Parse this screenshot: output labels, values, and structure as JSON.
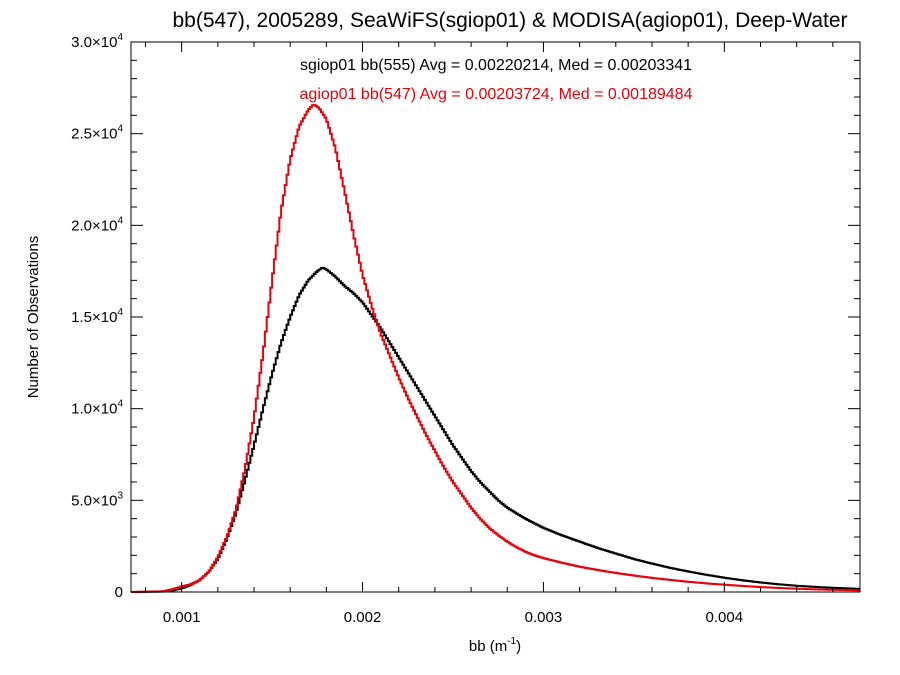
{
  "chart_data": {
    "type": "line",
    "title": "bb(547), 2005289, SeaWiFS(sgiop01) & MODISA(agiop01), Deep-Water",
    "xlabel": {
      "base": "bb (m",
      "sup": "-1",
      "close": ")"
    },
    "ylabel": "Number of Observations",
    "xlim": [
      0.00072,
      0.00475
    ],
    "ylim": [
      0,
      30000
    ],
    "x_ticks": [
      {
        "value": 0.001,
        "label": "0.001"
      },
      {
        "value": 0.002,
        "label": "0.002"
      },
      {
        "value": 0.003,
        "label": "0.003"
      },
      {
        "value": 0.004,
        "label": "0.004"
      }
    ],
    "y_ticks": [
      {
        "value": 0,
        "mant": "0",
        "exp": ""
      },
      {
        "value": 5000,
        "mant": "5.0×10",
        "exp": "3"
      },
      {
        "value": 10000,
        "mant": "1.0×10",
        "exp": "4"
      },
      {
        "value": 15000,
        "mant": "1.5×10",
        "exp": "4"
      },
      {
        "value": 20000,
        "mant": "2.0×10",
        "exp": "4"
      },
      {
        "value": 25000,
        "mant": "2.5×10",
        "exp": "4"
      },
      {
        "value": 30000,
        "mant": "3.0×10",
        "exp": "4"
      }
    ],
    "annotations": [
      {
        "text": "sgiop01 bb(555) Avg = 0.00220214, Med = 0.00203341",
        "color": "#000000"
      },
      {
        "text": "agiop01 bb(547) Avg = 0.00203724, Med = 0.00189484",
        "color": "#e8000b"
      }
    ],
    "grid": false,
    "step": true,
    "series": [
      {
        "color": "#000000",
        "points": [
          [
            0.00072,
            0
          ],
          [
            0.0009,
            20
          ],
          [
            0.00095,
            80
          ],
          [
            0.001,
            200
          ],
          [
            0.00105,
            380
          ],
          [
            0.0011,
            650
          ],
          [
            0.00115,
            1100
          ],
          [
            0.0012,
            1800
          ],
          [
            0.00125,
            2900
          ],
          [
            0.0013,
            4300
          ],
          [
            0.00135,
            6100
          ],
          [
            0.0014,
            8000
          ],
          [
            0.00145,
            10000
          ],
          [
            0.0015,
            11900
          ],
          [
            0.00155,
            13600
          ],
          [
            0.0016,
            15000
          ],
          [
            0.00165,
            16200
          ],
          [
            0.0017,
            17000
          ],
          [
            0.00175,
            17500
          ],
          [
            0.00178,
            17700
          ],
          [
            0.0018,
            17600
          ],
          [
            0.00185,
            17200
          ],
          [
            0.0019,
            16700
          ],
          [
            0.00195,
            16300
          ],
          [
            0.002,
            15800
          ],
          [
            0.00205,
            15100
          ],
          [
            0.0021,
            14400
          ],
          [
            0.00215,
            13600
          ],
          [
            0.0022,
            12800
          ],
          [
            0.00225,
            12000
          ],
          [
            0.0023,
            11200
          ],
          [
            0.00235,
            10400
          ],
          [
            0.0024,
            9600
          ],
          [
            0.00245,
            8800
          ],
          [
            0.0025,
            8000
          ],
          [
            0.00255,
            7300
          ],
          [
            0.0026,
            6600
          ],
          [
            0.00265,
            6000
          ],
          [
            0.0027,
            5500
          ],
          [
            0.00275,
            5000
          ],
          [
            0.0028,
            4600
          ],
          [
            0.00285,
            4300
          ],
          [
            0.0029,
            4000
          ],
          [
            0.00295,
            3750
          ],
          [
            0.003,
            3500
          ],
          [
            0.0031,
            3100
          ],
          [
            0.0032,
            2750
          ],
          [
            0.0033,
            2400
          ],
          [
            0.0034,
            2100
          ],
          [
            0.0035,
            1800
          ],
          [
            0.0036,
            1550
          ],
          [
            0.0037,
            1320
          ],
          [
            0.0038,
            1120
          ],
          [
            0.0039,
            940
          ],
          [
            0.004,
            780
          ],
          [
            0.0041,
            640
          ],
          [
            0.0042,
            520
          ],
          [
            0.0043,
            420
          ],
          [
            0.0044,
            340
          ],
          [
            0.0045,
            280
          ],
          [
            0.0046,
            230
          ],
          [
            0.0047,
            190
          ],
          [
            0.00475,
            170
          ]
        ]
      },
      {
        "color": "#e8000b",
        "points": [
          [
            0.00072,
            0
          ],
          [
            0.0009,
            40
          ],
          [
            0.00095,
            150
          ],
          [
            0.001,
            300
          ],
          [
            0.00105,
            420
          ],
          [
            0.0011,
            650
          ],
          [
            0.00115,
            1100
          ],
          [
            0.0012,
            1900
          ],
          [
            0.00125,
            3000
          ],
          [
            0.0013,
            4500
          ],
          [
            0.00135,
            6700
          ],
          [
            0.0014,
            9500
          ],
          [
            0.00145,
            13000
          ],
          [
            0.0015,
            17000
          ],
          [
            0.00155,
            20800
          ],
          [
            0.0016,
            23600
          ],
          [
            0.00165,
            25400
          ],
          [
            0.0017,
            26300
          ],
          [
            0.00173,
            26600
          ],
          [
            0.00176,
            26400
          ],
          [
            0.0018,
            25800
          ],
          [
            0.00185,
            24200
          ],
          [
            0.0019,
            21900
          ],
          [
            0.00195,
            19500
          ],
          [
            0.002,
            17300
          ],
          [
            0.00205,
            15600
          ],
          [
            0.0021,
            14100
          ],
          [
            0.00215,
            12900
          ],
          [
            0.0022,
            11700
          ],
          [
            0.00225,
            10600
          ],
          [
            0.0023,
            9600
          ],
          [
            0.00235,
            8600
          ],
          [
            0.0024,
            7700
          ],
          [
            0.00245,
            6800
          ],
          [
            0.0025,
            6000
          ],
          [
            0.00255,
            5300
          ],
          [
            0.0026,
            4600
          ],
          [
            0.00265,
            4000
          ],
          [
            0.0027,
            3500
          ],
          [
            0.00275,
            3100
          ],
          [
            0.0028,
            2750
          ],
          [
            0.00285,
            2450
          ],
          [
            0.0029,
            2200
          ],
          [
            0.00295,
            2000
          ],
          [
            0.003,
            1850
          ],
          [
            0.0031,
            1600
          ],
          [
            0.0032,
            1380
          ],
          [
            0.0033,
            1200
          ],
          [
            0.0034,
            1040
          ],
          [
            0.0035,
            900
          ],
          [
            0.0036,
            770
          ],
          [
            0.0037,
            660
          ],
          [
            0.0038,
            560
          ],
          [
            0.0039,
            470
          ],
          [
            0.004,
            400
          ],
          [
            0.0041,
            330
          ],
          [
            0.0042,
            270
          ],
          [
            0.0043,
            220
          ],
          [
            0.0044,
            180
          ],
          [
            0.0045,
            145
          ],
          [
            0.0046,
            120
          ],
          [
            0.0047,
            100
          ],
          [
            0.00475,
            90
          ]
        ]
      }
    ]
  }
}
